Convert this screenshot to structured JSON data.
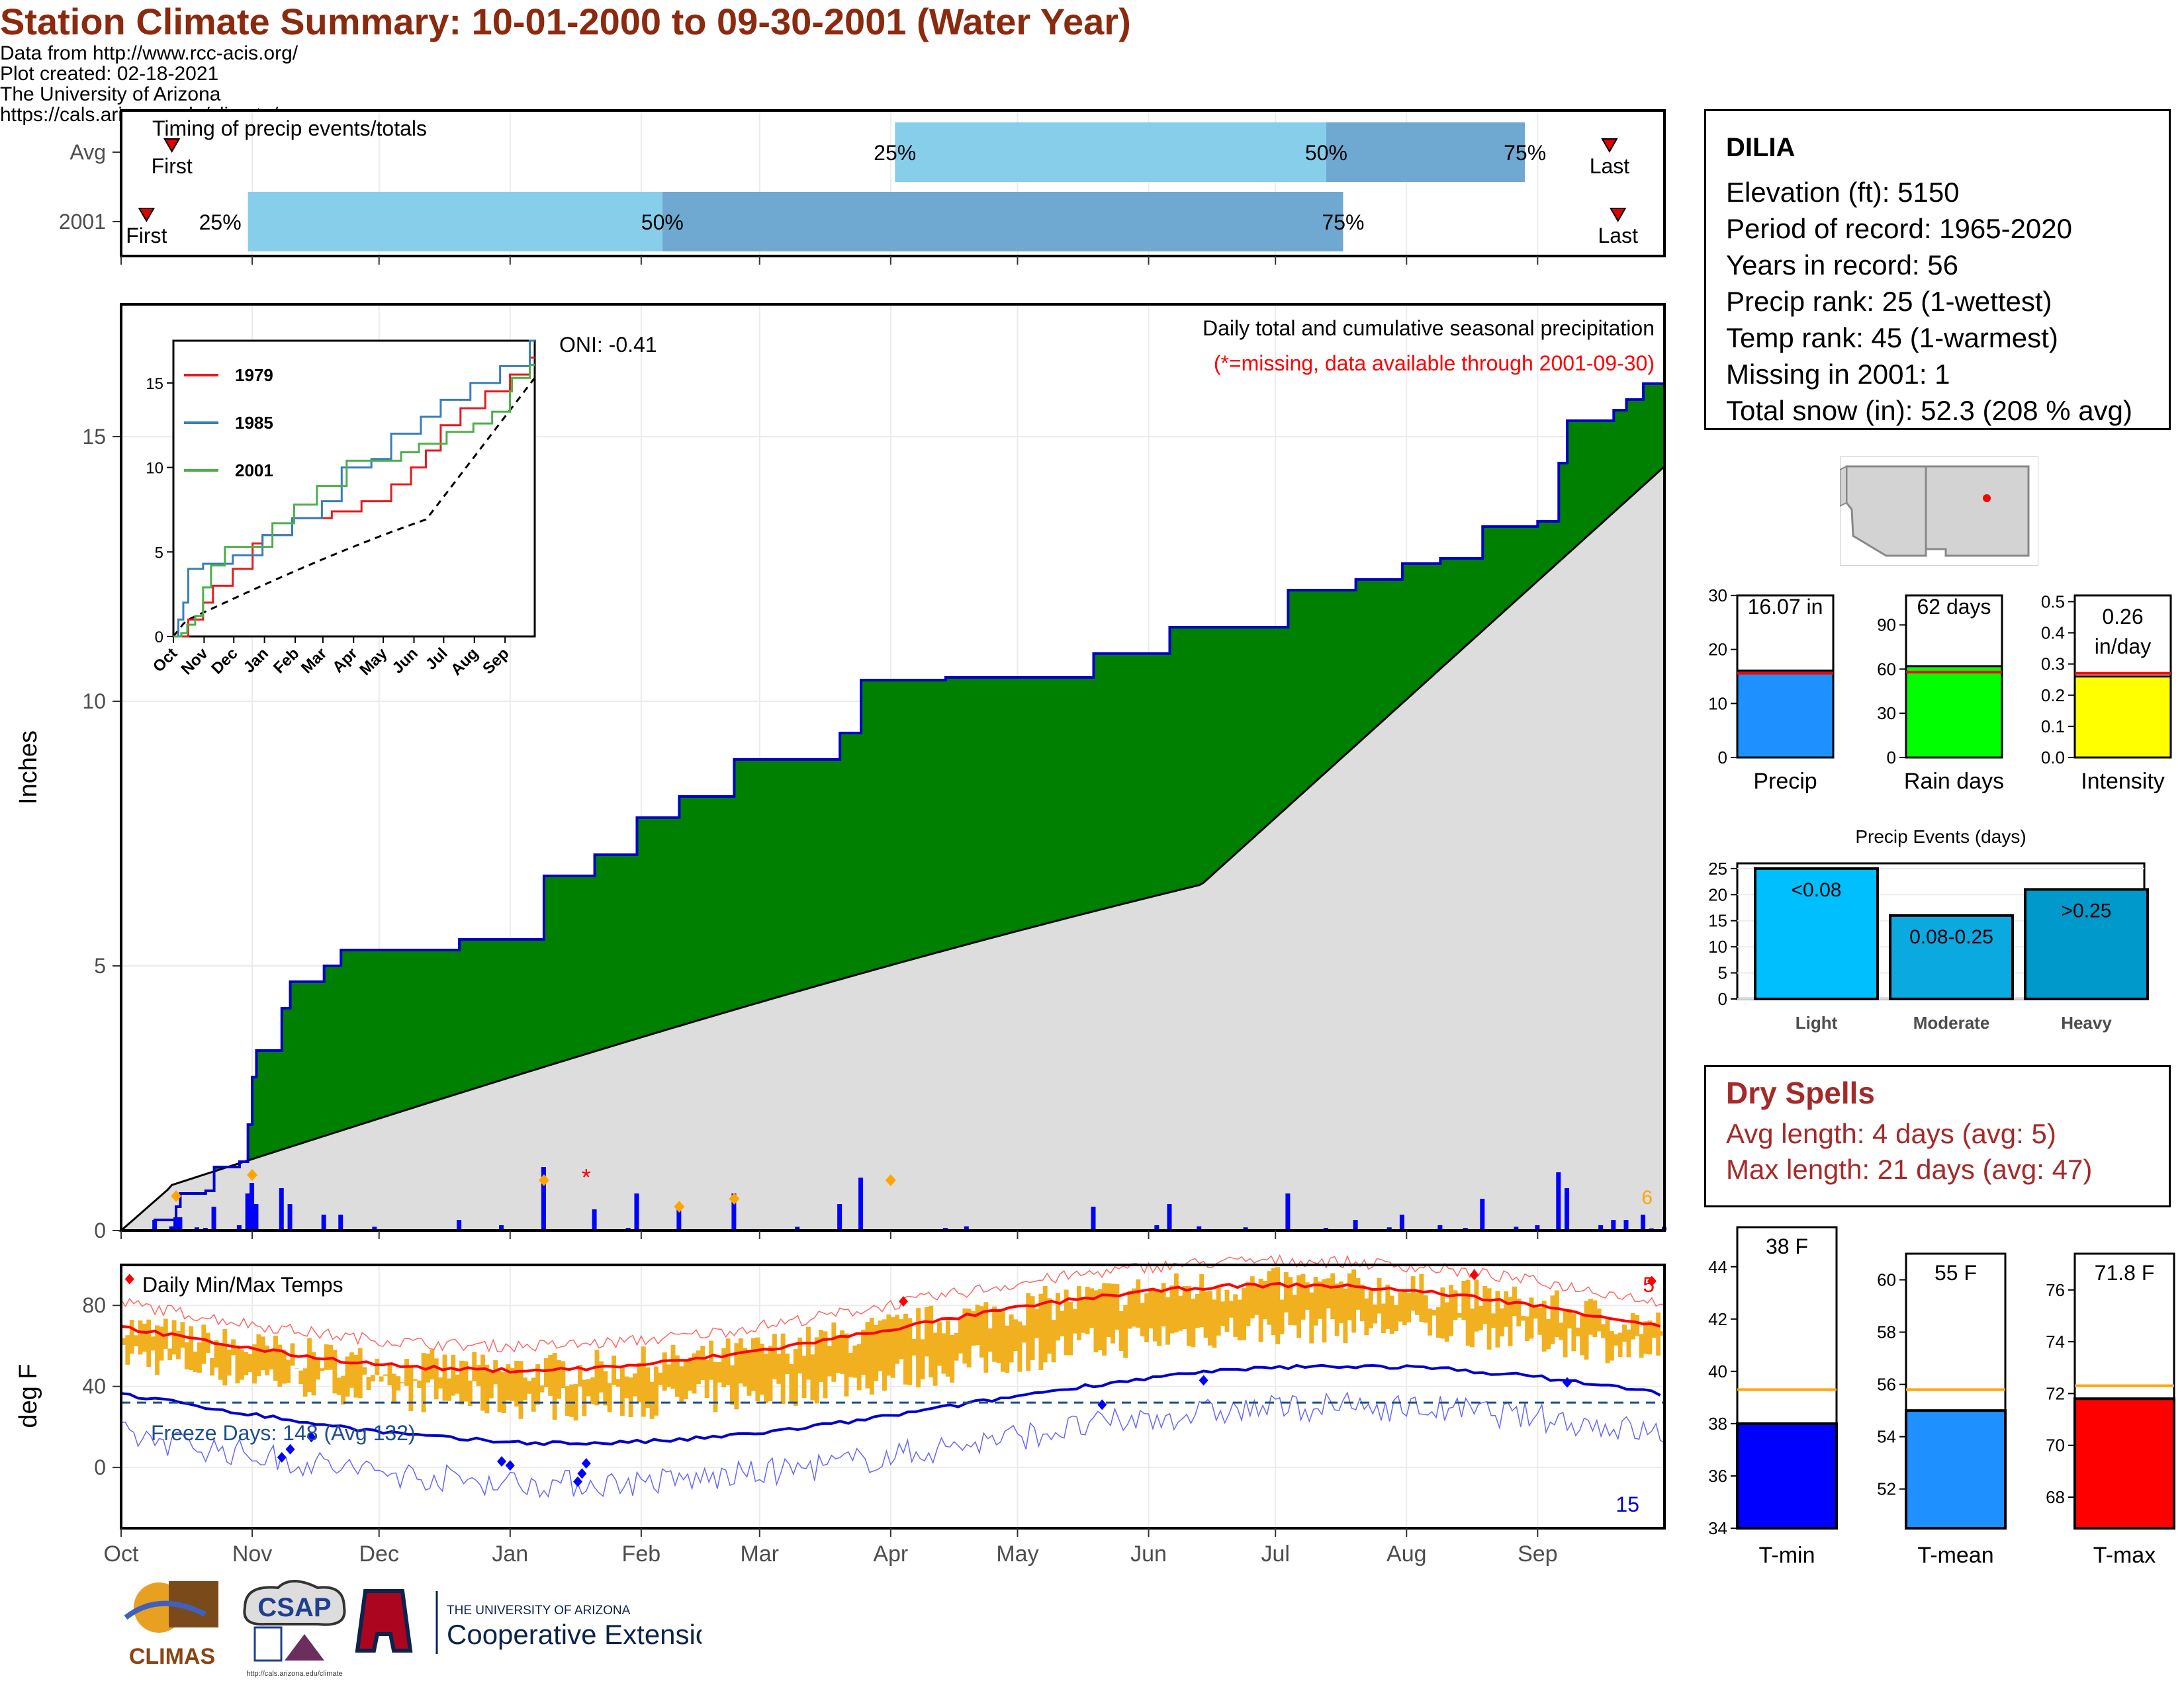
{
  "title": "Station Climate Summary: 10-01-2000 to 09-30-2001 (Water Year)",
  "timing": {
    "label": "Timing of precip events/totals",
    "rows": [
      "Avg",
      "2001"
    ],
    "first_label": "First",
    "last_label": "Last",
    "avg": {
      "first_day": 12,
      "p25_day": 183,
      "p50_day": 285,
      "p75_day": 332,
      "last_day": 352
    },
    "y2001": {
      "first_day": 6,
      "p25_day": 30,
      "p50_day": 128,
      "p75_day": 289,
      "last_day": 354
    },
    "labels": [
      "25%",
      "50%",
      "75%"
    ],
    "colors": {
      "light": "#87CEEB",
      "dark": "#6FA8D0",
      "marker": "#E00000"
    }
  },
  "months": [
    "Oct",
    "Nov",
    "Dec",
    "Jan",
    "Feb",
    "Mar",
    "Apr",
    "May",
    "Jun",
    "Jul",
    "Aug",
    "Sep"
  ],
  "precip_panel": {
    "ylabel": "Inches",
    "yticks": [
      0,
      5,
      10,
      15
    ],
    "ylim": [
      0,
      17.5
    ],
    "oni": "ONI: -0.41",
    "header": "Daily total and cumulative seasonal precipitation",
    "missing_note": "(*=missing, data available through 2001-09-30)",
    "corner_count": "6",
    "colors": {
      "surplus": "#008000",
      "normal": "#DDDDDD",
      "bars": "#0000FF",
      "outline": "#0000CC"
    }
  },
  "inset": {
    "yticks": [
      0,
      5,
      10,
      15
    ],
    "months": [
      "Oct",
      "Nov",
      "Dec",
      "Jan",
      "Feb",
      "Mar",
      "Apr",
      "May",
      "Jun",
      "Jul",
      "Aug",
      "Sep"
    ],
    "legend": [
      {
        "name": "1979",
        "color": "#E41A1C"
      },
      {
        "name": "1985",
        "color": "#377EB8"
      },
      {
        "name": "2001",
        "color": "#4DAF4A"
      }
    ]
  },
  "temp_panel": {
    "ylabel": "deg F",
    "label": "Daily Min/Max Temps",
    "freeze": "Freeze Days: 148 (Avg 132)",
    "yticks": [
      0,
      40,
      80
    ],
    "count_hot": "5",
    "count_cold": "15",
    "colors": {
      "range": "#F0B020",
      "max": "#FF0000",
      "min": "#0000CC"
    }
  },
  "station": {
    "name": "DILIA",
    "lines": [
      "Elevation (ft): 5150",
      "Period of record: 1965-2020",
      "Years in record: 56",
      "Precip rank: 25 (1-wettest)",
      "Temp rank: 45 (1-warmest)",
      "Missing in 2001: 1",
      "Total snow (in): 52.3 (208 % avg)"
    ]
  },
  "summary_bars": [
    {
      "label": "Precip",
      "value_text": "16.07 in",
      "value": 16.07,
      "avg": 15.6,
      "ymax": 30,
      "yticks": [
        "0",
        "10",
        "20",
        "30"
      ],
      "color": "#1E90FF"
    },
    {
      "label": "Rain days",
      "value_text": "62 days",
      "value": 62,
      "avg": 58,
      "ymax": 110,
      "yticks": [
        "0",
        "30",
        "60",
        "90"
      ],
      "color": "#00FF00"
    },
    {
      "label": "Intensity",
      "value_text": "0.26 in/day",
      "value": 0.26,
      "avg": 0.27,
      "ymax": 0.52,
      "yticks": [
        "0.0",
        "0.1",
        "0.2",
        "0.3",
        "0.4",
        "0.5"
      ],
      "color": "#FFFF00"
    }
  ],
  "events": {
    "title": "Precip Events (days)",
    "yticks": [
      "0",
      "5",
      "10",
      "15",
      "20",
      "25"
    ],
    "bars": [
      {
        "cat": "Light",
        "label": "<0.08",
        "value": 25,
        "color": "#00BFFF"
      },
      {
        "cat": "Moderate",
        "label": "0.08-0.25",
        "value": 16,
        "color": "#0AAAE0"
      },
      {
        "cat": "Heavy",
        "label": ">0.25",
        "value": 21,
        "color": "#0099CC"
      }
    ]
  },
  "dry_spells": {
    "title": "Dry Spells",
    "avg": "Avg length: 4 days (avg: 5)",
    "max": "Max length: 21 days (avg: 47)"
  },
  "temp_bars": [
    {
      "label": "T-min",
      "value_text": "38 F",
      "value": 38,
      "avg": 39.3,
      "ymin": 34,
      "ymax": 44.5,
      "yticks": [
        34,
        36,
        38,
        40,
        42,
        44
      ],
      "color": "#0000FF"
    },
    {
      "label": "T-mean",
      "value_text": "55 F",
      "value": 55,
      "avg": 55.8,
      "ymin": 50.5,
      "ymax": 61,
      "yticks": [
        52,
        54,
        56,
        58,
        60
      ],
      "color": "#1E90FF"
    },
    {
      "label": "T-max",
      "value_text": "71.8 F",
      "value": 71.8,
      "avg": 72.3,
      "ymin": 66.8,
      "ymax": 77.4,
      "yticks": [
        68,
        70,
        72,
        74,
        76
      ],
      "color": "#FF0000"
    }
  ],
  "credits": [
    "Data from http://www.rcc-acis.org/",
    "Plot created: 02-18-2021",
    "The University of Arizona",
    "https://cals.arizona.edu/climate/"
  ],
  "logos": {
    "climas": "CLIMAS",
    "csap": "CSAP",
    "csap_url": "http://cals.arizona.edu/climate",
    "ua_small": "THE UNIVERSITY OF ARIZONA",
    "ua_big": "Cooperative Extension"
  }
}
